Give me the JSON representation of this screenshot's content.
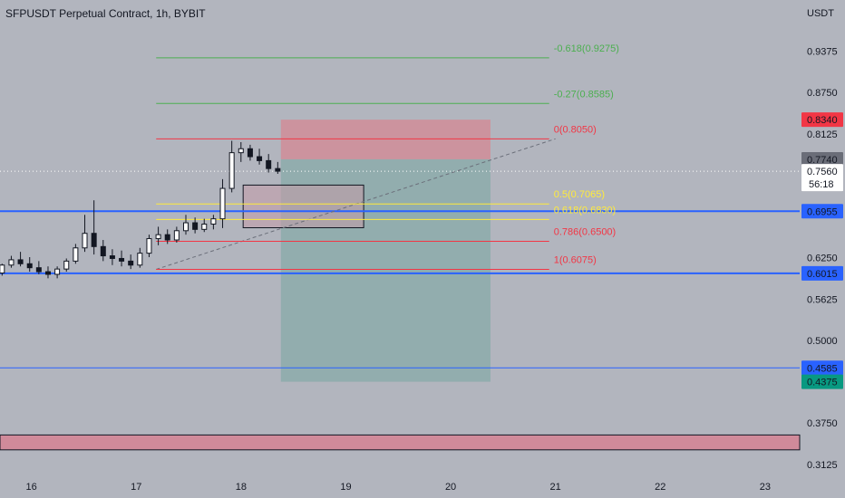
{
  "header": {
    "title": "SFPUSDT Perpetual Contract, 1h, BYBIT",
    "currency": "USDT"
  },
  "colors": {
    "background": "#b2b5be",
    "blue_line": "#2962ff",
    "fib_red": "#f23645",
    "fib_green": "#4caf50",
    "fib_yellow": "#ffeb3b",
    "stop_zone": "#d48893",
    "target_zone": "#89abaa",
    "bottom_zone": "#d08a9a",
    "candle": "#131722"
  },
  "chart_data": {
    "type": "candlestick",
    "y_axis": {
      "min": 0.3,
      "max": 1.015,
      "side": "right",
      "ticks": [
        {
          "value": 0.9375,
          "label": "0.9375"
        },
        {
          "value": 0.875,
          "label": "0.8750"
        },
        {
          "value": 0.8125,
          "label": "0.8125"
        },
        {
          "value": 0.625,
          "label": "0.6250"
        },
        {
          "value": 0.5625,
          "label": "0.5625"
        },
        {
          "value": 0.5,
          "label": "0.5000"
        },
        {
          "value": 0.375,
          "label": "0.3750"
        },
        {
          "value": 0.3125,
          "label": "0.3125"
        }
      ]
    },
    "x_axis": {
      "min": 15.7,
      "max": 23.33,
      "ticks": [
        {
          "value": 16,
          "label": "16"
        },
        {
          "value": 17,
          "label": "17"
        },
        {
          "value": 18,
          "label": "18"
        },
        {
          "value": 19,
          "label": "19"
        },
        {
          "value": 20,
          "label": "20"
        },
        {
          "value": 21,
          "label": "21"
        },
        {
          "value": 22,
          "label": "22"
        },
        {
          "value": 23,
          "label": "23"
        }
      ]
    },
    "price_labels": [
      {
        "value": 0.834,
        "label": "0.8340",
        "style": "red"
      },
      {
        "value": 0.774,
        "label": "0.7740",
        "style": "gray"
      },
      {
        "value": 0.756,
        "label": "0.7560",
        "style": "white",
        "sub": "56:18"
      },
      {
        "value": 0.6955,
        "label": "0.6955",
        "style": "blue"
      },
      {
        "value": 0.6015,
        "label": "0.6015",
        "style": "blue"
      },
      {
        "value": 0.4585,
        "label": "0.4585",
        "style": "blue"
      },
      {
        "value": 0.4375,
        "label": "0.4375",
        "style": "green"
      }
    ],
    "horizontal_lines": [
      {
        "value": 0.6955,
        "color": "blue",
        "width": 2
      },
      {
        "value": 0.6015,
        "color": "blue",
        "width": 2
      },
      {
        "value": 0.4585,
        "color": "blue",
        "width": 1
      }
    ],
    "current_price_line": 0.756,
    "fib_retracement": {
      "x_start": 17.19,
      "x_end": 20.94,
      "levels": [
        {
          "label": "-0.618(0.9275)",
          "value": 0.9275,
          "color": "green"
        },
        {
          "label": "-0.27(0.8585)",
          "value": 0.8585,
          "color": "green"
        },
        {
          "label": "0(0.8050)",
          "value": 0.805,
          "color": "red"
        },
        {
          "label": "0.5(0.7065)",
          "value": 0.7065,
          "color": "yellow"
        },
        {
          "label": "0.618(0.6830)",
          "value": 0.683,
          "color": "yellow"
        },
        {
          "label": "0.786(0.6500)",
          "value": 0.65,
          "color": "red"
        },
        {
          "label": "1(0.6075)",
          "value": 0.6075,
          "color": "red"
        }
      ],
      "trend_line": {
        "from": [
          17.19,
          0.6075
        ],
        "to": [
          21.0,
          0.805
        ]
      }
    },
    "short_position": {
      "x_start": 18.38,
      "x_end": 20.38,
      "entry": 0.774,
      "stop": 0.834,
      "target": 0.4375
    },
    "zones": [
      {
        "x_start": 18.02,
        "x_end": 19.17,
        "top": 0.735,
        "bottom": 0.6705,
        "kind": "box"
      },
      {
        "x_start": 15.7,
        "x_end": 23.33,
        "top": 0.357,
        "bottom": 0.3345,
        "kind": "bottom"
      }
    ],
    "candles_ohlc": [
      [
        0.602,
        0.616,
        0.598,
        0.614
      ],
      [
        0.614,
        0.628,
        0.61,
        0.622
      ],
      [
        0.622,
        0.634,
        0.612,
        0.616
      ],
      [
        0.616,
        0.626,
        0.604,
        0.61
      ],
      [
        0.61,
        0.62,
        0.6,
        0.604
      ],
      [
        0.604,
        0.612,
        0.594,
        0.6
      ],
      [
        0.6,
        0.612,
        0.594,
        0.608
      ],
      [
        0.608,
        0.624,
        0.604,
        0.62
      ],
      [
        0.62,
        0.646,
        0.616,
        0.64
      ],
      [
        0.64,
        0.69,
        0.634,
        0.662
      ],
      [
        0.662,
        0.712,
        0.63,
        0.642
      ],
      [
        0.642,
        0.652,
        0.62,
        0.628
      ],
      [
        0.628,
        0.638,
        0.614,
        0.624
      ],
      [
        0.624,
        0.636,
        0.612,
        0.62
      ],
      [
        0.62,
        0.63,
        0.608,
        0.614
      ],
      [
        0.614,
        0.64,
        0.61,
        0.632
      ],
      [
        0.632,
        0.66,
        0.626,
        0.654
      ],
      [
        0.654,
        0.672,
        0.644,
        0.66
      ],
      [
        0.66,
        0.668,
        0.646,
        0.652
      ],
      [
        0.652,
        0.672,
        0.648,
        0.666
      ],
      [
        0.666,
        0.69,
        0.66,
        0.678
      ],
      [
        0.678,
        0.686,
        0.662,
        0.668
      ],
      [
        0.668,
        0.684,
        0.664,
        0.676
      ],
      [
        0.676,
        0.69,
        0.668,
        0.684
      ],
      [
        0.684,
        0.744,
        0.67,
        0.73
      ],
      [
        0.73,
        0.802,
        0.724,
        0.784
      ],
      [
        0.784,
        0.8,
        0.77,
        0.79
      ],
      [
        0.79,
        0.796,
        0.772,
        0.778
      ],
      [
        0.778,
        0.79,
        0.766,
        0.772
      ],
      [
        0.772,
        0.782,
        0.754,
        0.76
      ],
      [
        0.76,
        0.77,
        0.752,
        0.756
      ]
    ]
  }
}
